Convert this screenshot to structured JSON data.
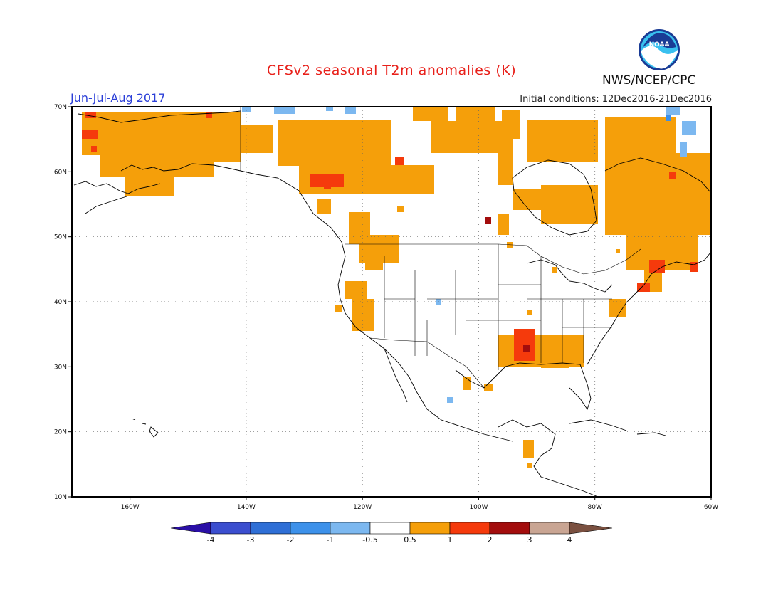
{
  "header": {
    "title": "CFSv2 seasonal T2m anomalies (K)",
    "period": "Jun-Jul-Aug 2017",
    "initial_conditions": "Initial conditions: 12Dec2016-21Dec2016",
    "agency": "NWS/NCEP/CPC",
    "logo_text": "NOAA"
  },
  "axes": {
    "lat_labels": [
      "70N",
      "60N",
      "50N",
      "40N",
      "30N",
      "20N",
      "10N"
    ],
    "lon_labels": [
      "160W",
      "140W",
      "120W",
      "100W",
      "80W",
      "60W"
    ],
    "grid": "dotted"
  },
  "colorbar": {
    "labels": [
      "-4",
      "-3",
      "-2",
      "-1",
      "-0.5",
      "0.5",
      "1",
      "2",
      "3",
      "4"
    ],
    "colors": [
      "#2a0fa6",
      "#3b4ecf",
      "#2f6fd6",
      "#3d91ea",
      "#7cb8f0",
      "#ffffff",
      "#f59f0a",
      "#f53a0c",
      "#a30d0d",
      "#c9a593",
      "#7a5040"
    ]
  },
  "palette": {
    "warm_05_1": "#f59f0a",
    "warm_1_2": "#f53a0c",
    "warm_2_3": "#a30d0d",
    "cool_05_1": "#7cb8f0",
    "cool_1_2": "#3d91ea"
  }
}
